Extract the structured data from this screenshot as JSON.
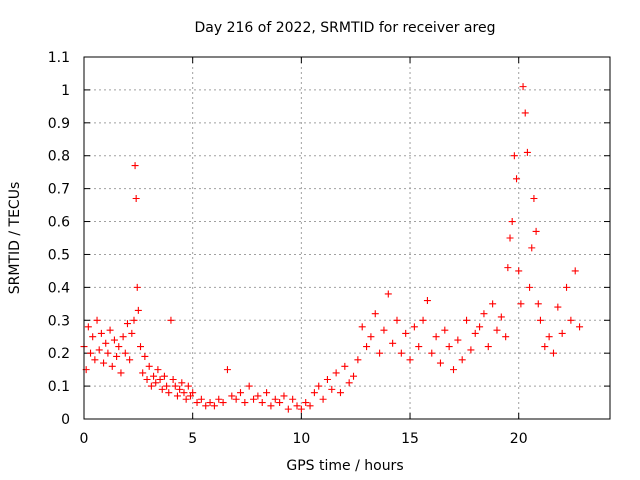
{
  "chart_data": {
    "type": "scatter",
    "title": "Day 216 of 2022, SRMTID for receiver areg",
    "xlabel": "GPS time / hours",
    "ylabel": "SRMTID / TECUs",
    "xlim": [
      0,
      24.2
    ],
    "ylim": [
      0,
      1.1
    ],
    "xticks": [
      0,
      5,
      10,
      15,
      20
    ],
    "xtick_labels": [
      "0",
      "5",
      "10",
      "15",
      "20"
    ],
    "yticks": [
      0,
      0.1,
      0.2,
      0.3,
      0.4,
      0.5,
      0.6,
      0.7,
      0.8,
      0.9,
      1.0,
      1.1
    ],
    "ytick_labels": [
      "0",
      "0.1",
      "0.2",
      "0.3",
      "0.4",
      "0.5",
      "0.6",
      "0.7",
      "0.8",
      "0.9",
      "1",
      "1.1"
    ],
    "grid": true,
    "marker": "+",
    "color": "#ff0000",
    "series": [
      {
        "name": "SRMTID",
        "x": [
          0.0,
          0.1,
          0.2,
          0.3,
          0.4,
          0.5,
          0.6,
          0.7,
          0.8,
          0.9,
          1.0,
          1.1,
          1.2,
          1.3,
          1.4,
          1.5,
          1.6,
          1.7,
          1.8,
          1.9,
          2.0,
          2.1,
          2.2,
          2.3,
          2.35,
          2.4,
          2.45,
          2.5,
          2.6,
          2.7,
          2.8,
          2.9,
          3.0,
          3.1,
          3.2,
          3.3,
          3.4,
          3.5,
          3.6,
          3.7,
          3.8,
          3.9,
          4.0,
          4.1,
          4.2,
          4.3,
          4.4,
          4.5,
          4.6,
          4.7,
          4.8,
          4.9,
          5.0,
          5.2,
          5.4,
          5.6,
          5.8,
          6.0,
          6.2,
          6.4,
          6.6,
          6.8,
          7.0,
          7.2,
          7.4,
          7.6,
          7.8,
          8.0,
          8.2,
          8.4,
          8.6,
          8.8,
          9.0,
          9.2,
          9.4,
          9.6,
          9.8,
          10.0,
          10.2,
          10.4,
          10.6,
          10.8,
          11.0,
          11.2,
          11.4,
          11.6,
          11.8,
          12.0,
          12.2,
          12.4,
          12.6,
          12.8,
          13.0,
          13.2,
          13.4,
          13.6,
          13.8,
          14.0,
          14.2,
          14.4,
          14.6,
          14.8,
          15.0,
          15.2,
          15.4,
          15.6,
          15.8,
          16.0,
          16.2,
          16.4,
          16.6,
          16.8,
          17.0,
          17.2,
          17.4,
          17.6,
          17.8,
          18.0,
          18.2,
          18.4,
          18.6,
          18.8,
          19.0,
          19.2,
          19.4,
          19.5,
          19.6,
          19.7,
          19.8,
          19.9,
          20.0,
          20.1,
          20.2,
          20.3,
          20.4,
          20.5,
          20.6,
          20.7,
          20.8,
          20.9,
          21.0,
          21.2,
          21.4,
          21.6,
          21.8,
          22.0,
          22.2,
          22.4,
          22.6,
          22.8
        ],
        "y": [
          0.22,
          0.15,
          0.28,
          0.2,
          0.25,
          0.18,
          0.3,
          0.21,
          0.26,
          0.17,
          0.23,
          0.2,
          0.27,
          0.16,
          0.24,
          0.19,
          0.22,
          0.14,
          0.25,
          0.2,
          0.29,
          0.18,
          0.26,
          0.3,
          0.77,
          0.67,
          0.4,
          0.33,
          0.22,
          0.14,
          0.19,
          0.12,
          0.16,
          0.1,
          0.13,
          0.11,
          0.15,
          0.12,
          0.09,
          0.13,
          0.1,
          0.08,
          0.3,
          0.12,
          0.1,
          0.07,
          0.09,
          0.11,
          0.08,
          0.06,
          0.1,
          0.07,
          0.08,
          0.05,
          0.06,
          0.04,
          0.05,
          0.04,
          0.06,
          0.05,
          0.15,
          0.07,
          0.06,
          0.08,
          0.05,
          0.1,
          0.06,
          0.07,
          0.05,
          0.08,
          0.04,
          0.06,
          0.05,
          0.07,
          0.03,
          0.06,
          0.04,
          0.03,
          0.05,
          0.04,
          0.08,
          0.1,
          0.06,
          0.12,
          0.09,
          0.14,
          0.08,
          0.16,
          0.11,
          0.13,
          0.18,
          0.28,
          0.22,
          0.25,
          0.32,
          0.2,
          0.27,
          0.38,
          0.23,
          0.3,
          0.2,
          0.26,
          0.18,
          0.28,
          0.22,
          0.3,
          0.36,
          0.2,
          0.25,
          0.17,
          0.27,
          0.22,
          0.15,
          0.24,
          0.18,
          0.3,
          0.21,
          0.26,
          0.28,
          0.32,
          0.22,
          0.35,
          0.27,
          0.31,
          0.25,
          0.46,
          0.55,
          0.6,
          0.8,
          0.73,
          0.45,
          0.35,
          1.01,
          0.93,
          0.81,
          0.4,
          0.52,
          0.67,
          0.57,
          0.35,
          0.3,
          0.22,
          0.25,
          0.2,
          0.34,
          0.26,
          0.4,
          0.3,
          0.45,
          0.28
        ]
      }
    ]
  }
}
